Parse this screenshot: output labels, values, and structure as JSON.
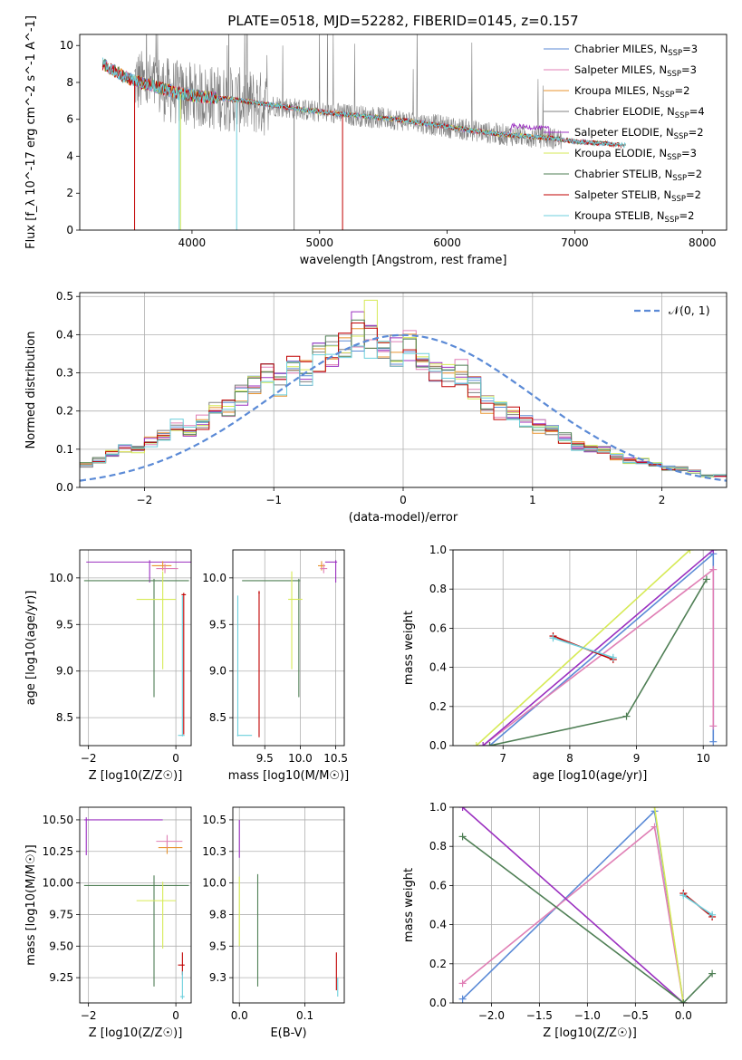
{
  "figure_title": "PLATE=0518, MJD=52282, FIBERID=0145, z=0.157",
  "colors": {
    "Chabrier MILES": "#5b8ad6",
    "Salpeter MILES": "#e07fb5",
    "Kroupa MILES": "#e8932e",
    "Chabrier ELODIE": "#808080",
    "Salpeter ELODIE": "#9b30c0",
    "Kroupa ELODIE": "#d6ea55",
    "Chabrier STELIB": "#4f7f55",
    "Salpeter STELIB": "#c00000",
    "Kroupa STELIB": "#6ccfdc"
  },
  "chart_data": [
    {
      "id": "spectrum",
      "type": "line",
      "xlabel": "wavelength [Angstrom, rest frame]",
      "ylabel": "Flux [f_λ 10^-17 erg cm^-2 s^-1 A^-1]",
      "xlim": [
        3120,
        8190
      ],
      "ylim": [
        0,
        10.6
      ],
      "xticks": [
        4000,
        5000,
        6000,
        7000,
        8000
      ],
      "yticks": [
        0,
        2,
        4,
        6,
        8,
        10
      ],
      "grid": false,
      "legend_position": "right",
      "series": [
        {
          "name": "Chabrier MILES",
          "nssp": "3"
        },
        {
          "name": "Salpeter MILES",
          "nssp": "3"
        },
        {
          "name": "Kroupa MILES",
          "nssp": "2"
        },
        {
          "name": "Chabrier ELODIE",
          "nssp": "4"
        },
        {
          "name": "Salpeter ELODIE",
          "nssp": "2"
        },
        {
          "name": "Kroupa ELODIE",
          "nssp": "3"
        },
        {
          "name": "Chabrier STELIB",
          "nssp": "2"
        },
        {
          "name": "Salpeter STELIB",
          "nssp": "2"
        },
        {
          "name": "Kroupa STELIB",
          "nssp": "2"
        }
      ],
      "continuum": {
        "x": [
          3300,
          3500,
          3700,
          3900,
          4100,
          4300,
          4500,
          4700,
          5000,
          5300,
          5600,
          6000,
          6400,
          6600,
          6800,
          7000,
          7200,
          7400
        ],
        "y": [
          9.0,
          8.2,
          7.8,
          7.4,
          7.2,
          7.1,
          6.9,
          6.7,
          6.4,
          6.2,
          6.0,
          5.6,
          5.2,
          5.1,
          5.0,
          4.8,
          4.7,
          4.6
        ]
      }
    },
    {
      "id": "residuals",
      "type": "line",
      "xlabel": "(data-model)/error",
      "ylabel": "Normed distribution",
      "xlim": [
        -2.5,
        2.5
      ],
      "ylim": [
        0,
        0.51
      ],
      "xticks": [
        -2,
        -1,
        0,
        1,
        2
      ],
      "yticks": [
        0.0,
        0.1,
        0.2,
        0.3,
        0.4,
        0.5
      ],
      "grid": true,
      "legend_position": "top-right",
      "legend_label": "𝒩(0, 1)",
      "histogram_reference": {
        "bin_centers": [
          -2.45,
          -2.35,
          -2.25,
          -2.15,
          -2.05,
          -1.95,
          -1.85,
          -1.75,
          -1.65,
          -1.55,
          -1.45,
          -1.35,
          -1.25,
          -1.15,
          -1.05,
          -0.95,
          -0.85,
          -0.75,
          -0.65,
          -0.55,
          -0.45,
          -0.35,
          -0.25,
          -0.15,
          -0.05,
          0.05,
          0.15,
          0.25,
          0.35,
          0.45,
          0.55,
          0.65,
          0.75,
          0.85,
          0.95,
          1.05,
          1.15,
          1.25,
          1.35,
          1.45,
          1.55,
          1.65,
          1.75,
          1.85,
          1.95,
          2.05,
          2.15,
          2.25,
          2.35,
          2.45
        ],
        "density": [
          0.06,
          0.07,
          0.09,
          0.1,
          0.1,
          0.12,
          0.14,
          0.16,
          0.15,
          0.17,
          0.2,
          0.21,
          0.24,
          0.26,
          0.29,
          0.27,
          0.31,
          0.3,
          0.34,
          0.36,
          0.37,
          0.4,
          0.38,
          0.36,
          0.36,
          0.37,
          0.33,
          0.3,
          0.29,
          0.3,
          0.26,
          0.22,
          0.2,
          0.19,
          0.17,
          0.16,
          0.15,
          0.13,
          0.11,
          0.1,
          0.1,
          0.08,
          0.07,
          0.07,
          0.06,
          0.05,
          0.05,
          0.04,
          0.03,
          0.03
        ]
      }
    },
    {
      "id": "age-z",
      "type": "scatter",
      "xlabel": "Z [log10(Z/Z☉)]",
      "ylabel": "age [log10(age/yr)]",
      "xlim": [
        -2.2,
        0.35
      ],
      "ylim": [
        8.2,
        10.3
      ],
      "xticks": [
        -2,
        0
      ],
      "yticks": [
        8.5,
        9.0,
        9.5,
        10.0
      ],
      "grid": true,
      "points": [
        {
          "series": "Salpeter ELODIE",
          "x": -0.6,
          "y": 10.17,
          "xerr": [
            1.45,
            1.4
          ],
          "yerr": [
            0.22,
            0.02
          ]
        },
        {
          "series": "Chabrier STELIB",
          "x": -0.5,
          "y": 9.97,
          "xerr": [
            1.6,
            0.8
          ],
          "yerr": [
            1.25,
            0.02
          ]
        },
        {
          "series": "Kroupa ELODIE",
          "x": -0.3,
          "y": 9.77,
          "xerr": [
            0.6,
            0.3
          ],
          "yerr": [
            0.75,
            0.3
          ]
        },
        {
          "series": "Kroupa MILES",
          "x": -0.3,
          "y": 10.13,
          "xerr": [
            0.25,
            0.2
          ],
          "yerr": [
            0.05,
            0.05
          ]
        },
        {
          "series": "Salpeter MILES",
          "x": -0.25,
          "y": 10.1,
          "xerr": [
            0.2,
            0.3
          ],
          "yerr": [
            0.05,
            0.05
          ]
        },
        {
          "series": "Kroupa STELIB",
          "x": 0.15,
          "y": 8.31,
          "xerr": [
            0.1,
            0.05
          ],
          "yerr": [
            0.01,
            1.5
          ]
        },
        {
          "series": "Salpeter STELIB",
          "x": 0.18,
          "y": 9.82,
          "xerr": [
            0.05,
            0.05
          ],
          "yerr": [
            1.5,
            0.02
          ]
        }
      ]
    },
    {
      "id": "age-mass",
      "type": "scatter",
      "xlabel": "mass [log10(M/M☉)]",
      "ylabel": "",
      "xlim": [
        9.05,
        10.62
      ],
      "ylim": [
        8.2,
        10.3
      ],
      "xticks": [
        9.5,
        10.0,
        10.5
      ],
      "yticks": [
        8.5,
        9.0,
        9.5,
        10.0
      ],
      "grid": true,
      "points": [
        {
          "series": "Salpeter ELODIE",
          "x": 10.5,
          "y": 10.17,
          "xerr": [
            0.15,
            0.02
          ],
          "yerr": [
            0.22,
            0.02
          ]
        },
        {
          "series": "Chabrier STELIB",
          "x": 9.98,
          "y": 9.97,
          "xerr": [
            0.8,
            0.02
          ],
          "yerr": [
            1.25,
            0.02
          ]
        },
        {
          "series": "Kroupa ELODIE",
          "x": 9.88,
          "y": 9.77,
          "xerr": [
            0.05,
            0.15
          ],
          "yerr": [
            0.75,
            0.3
          ]
        },
        {
          "series": "Kroupa MILES",
          "x": 10.3,
          "y": 10.13,
          "xerr": [
            0.05,
            0.05
          ],
          "yerr": [
            0.05,
            0.05
          ]
        },
        {
          "series": "Salpeter MILES",
          "x": 10.33,
          "y": 10.1,
          "xerr": [
            0.05,
            0.05
          ],
          "yerr": [
            0.05,
            0.05
          ]
        },
        {
          "series": "Kroupa STELIB",
          "x": 9.12,
          "y": 8.31,
          "xerr": [
            0.01,
            0.2
          ],
          "yerr": [
            0.01,
            1.5
          ]
        },
        {
          "series": "Salpeter STELIB",
          "x": 9.42,
          "y": 9.84,
          "xerr": [
            0.01,
            0.01
          ],
          "yerr": [
            1.55,
            0.02
          ]
        }
      ]
    },
    {
      "id": "weight-age",
      "type": "line",
      "xlabel": "age [log10(age/yr)]",
      "ylabel": "mass weight",
      "xlim": [
        6.25,
        10.35
      ],
      "ylim": [
        0,
        1
      ],
      "xticks": [
        7,
        8,
        9,
        10
      ],
      "yticks": [
        0.0,
        0.2,
        0.4,
        0.6,
        0.8,
        1.0
      ],
      "grid": true,
      "series": [
        {
          "series": "Chabrier MILES",
          "x": [
            6.8,
            10.15,
            10.15
          ],
          "y": [
            0.0,
            0.98,
            0.02
          ]
        },
        {
          "series": "Salpeter MILES",
          "x": [
            6.7,
            10.15,
            10.15
          ],
          "y": [
            0.0,
            0.9,
            0.1
          ]
        },
        {
          "series": "Kroupa ELODIE",
          "x": [
            6.6,
            9.8
          ],
          "y": [
            0.0,
            1.0
          ]
        },
        {
          "series": "Salpeter ELODIE",
          "x": [
            6.7,
            10.15
          ],
          "y": [
            0.0,
            1.0
          ]
        },
        {
          "series": "Chabrier STELIB",
          "x": [
            6.8,
            8.85,
            10.05
          ],
          "y": [
            0.0,
            0.15,
            0.85
          ]
        },
        {
          "series": "Salpeter STELIB",
          "x": [
            7.75,
            8.65
          ],
          "y": [
            0.56,
            0.44
          ]
        },
        {
          "series": "Kroupa STELIB",
          "x": [
            7.75,
            8.65
          ],
          "y": [
            0.55,
            0.45
          ]
        }
      ]
    },
    {
      "id": "mass-z",
      "type": "scatter",
      "xlabel": "Z [log10(Z/Z☉)]",
      "ylabel": "mass [log10(M/M☉)]",
      "xlim": [
        -2.2,
        0.35
      ],
      "ylim": [
        9.05,
        10.6
      ],
      "xticks": [
        -2,
        0
      ],
      "yticks": [
        9.25,
        9.5,
        9.75,
        10.0,
        10.25,
        10.5
      ],
      "grid": true,
      "points": [
        {
          "series": "Salpeter ELODIE",
          "x": -2.05,
          "y": 10.5,
          "xerr": [
            0.05,
            1.75
          ],
          "yerr": [
            0.28,
            0.02
          ]
        },
        {
          "series": "Chabrier STELIB",
          "x": -0.5,
          "y": 9.98,
          "xerr": [
            1.6,
            0.8
          ],
          "yerr": [
            0.8,
            0.08
          ]
        },
        {
          "series": "Kroupa ELODIE",
          "x": -0.3,
          "y": 9.86,
          "xerr": [
            0.6,
            0.3
          ],
          "yerr": [
            0.38,
            0.15
          ]
        },
        {
          "series": "Kroupa MILES",
          "x": -0.2,
          "y": 10.28,
          "xerr": [
            0.2,
            0.35
          ],
          "yerr": [
            0.05,
            0.05
          ]
        },
        {
          "series": "Salpeter MILES",
          "x": -0.2,
          "y": 10.33,
          "xerr": [
            0.25,
            0.35
          ],
          "yerr": [
            0.05,
            0.05
          ]
        },
        {
          "series": "Salpeter STELIB",
          "x": 0.15,
          "y": 9.35,
          "xerr": [
            0.1,
            0.05
          ],
          "yerr": [
            0.08,
            0.1
          ]
        },
        {
          "series": "Kroupa STELIB",
          "x": 0.15,
          "y": 9.1,
          "xerr": [
            0.05,
            0.05
          ],
          "yerr": [
            0.02,
            0.2
          ]
        }
      ]
    },
    {
      "id": "mass-ebv",
      "type": "scatter",
      "xlabel": "E(B-V)",
      "ylabel": "",
      "xlim": [
        -0.01,
        0.16
      ],
      "ylim": [
        9.05,
        10.6
      ],
      "xticks": [
        0.0,
        0.1
      ],
      "yticks": [
        9.25,
        9.5,
        9.75,
        10.0,
        10.25,
        10.5
      ],
      "grid": true,
      "points": [
        {
          "series": "Salpeter ELODIE",
          "x": 0.0,
          "y": 10.3,
          "xerr": [
            0,
            0
          ],
          "yerr": [
            0.1,
            0.2
          ]
        },
        {
          "series": "Kroupa ELODIE",
          "x": 0.0,
          "y": 9.8,
          "xerr": [
            0,
            0
          ],
          "yerr": [
            0.3,
            0.25
          ]
        },
        {
          "series": "Chabrier STELIB",
          "x": 0.028,
          "y": 9.6,
          "xerr": [
            0,
            0
          ],
          "yerr": [
            0.42,
            0.47
          ]
        },
        {
          "series": "Salpeter STELIB",
          "x": 0.148,
          "y": 9.3,
          "xerr": [
            0,
            0
          ],
          "yerr": [
            0.15,
            0.15
          ]
        },
        {
          "series": "Kroupa STELIB",
          "x": 0.15,
          "y": 9.15,
          "xerr": [
            0,
            0
          ],
          "yerr": [
            0.05,
            0.1
          ]
        }
      ]
    },
    {
      "id": "weight-z",
      "type": "line",
      "xlabel": "Z [log10(Z/Z☉)]",
      "ylabel": "mass weight",
      "xlim": [
        -2.4,
        0.45
      ],
      "ylim": [
        0,
        1
      ],
      "xticks": [
        -2.0,
        -1.5,
        -1.0,
        -0.5,
        0.0
      ],
      "yticks": [
        0.0,
        0.2,
        0.4,
        0.6,
        0.8,
        1.0
      ],
      "grid": true,
      "series": [
        {
          "series": "Chabrier MILES",
          "x": [
            -2.3,
            -0.3,
            0.0
          ],
          "y": [
            0.02,
            0.98,
            0.0
          ]
        },
        {
          "series": "Salpeter MILES",
          "x": [
            -2.3,
            -0.3,
            0.0
          ],
          "y": [
            0.1,
            0.9,
            0.0
          ]
        },
        {
          "series": "Salpeter ELODIE",
          "x": [
            -2.3,
            0.0
          ],
          "y": [
            1.0,
            0.0
          ]
        },
        {
          "series": "Kroupa ELODIE",
          "x": [
            -0.3,
            0.0
          ],
          "y": [
            1.0,
            0.0
          ]
        },
        {
          "series": "Chabrier STELIB",
          "x": [
            -2.3,
            0.0,
            0.3
          ],
          "y": [
            0.85,
            0.0,
            0.15
          ]
        },
        {
          "series": "Salpeter STELIB",
          "x": [
            0.0,
            0.3
          ],
          "y": [
            0.56,
            0.44
          ]
        },
        {
          "series": "Kroupa STELIB",
          "x": [
            0.0,
            0.3
          ],
          "y": [
            0.55,
            0.45
          ]
        }
      ]
    }
  ]
}
